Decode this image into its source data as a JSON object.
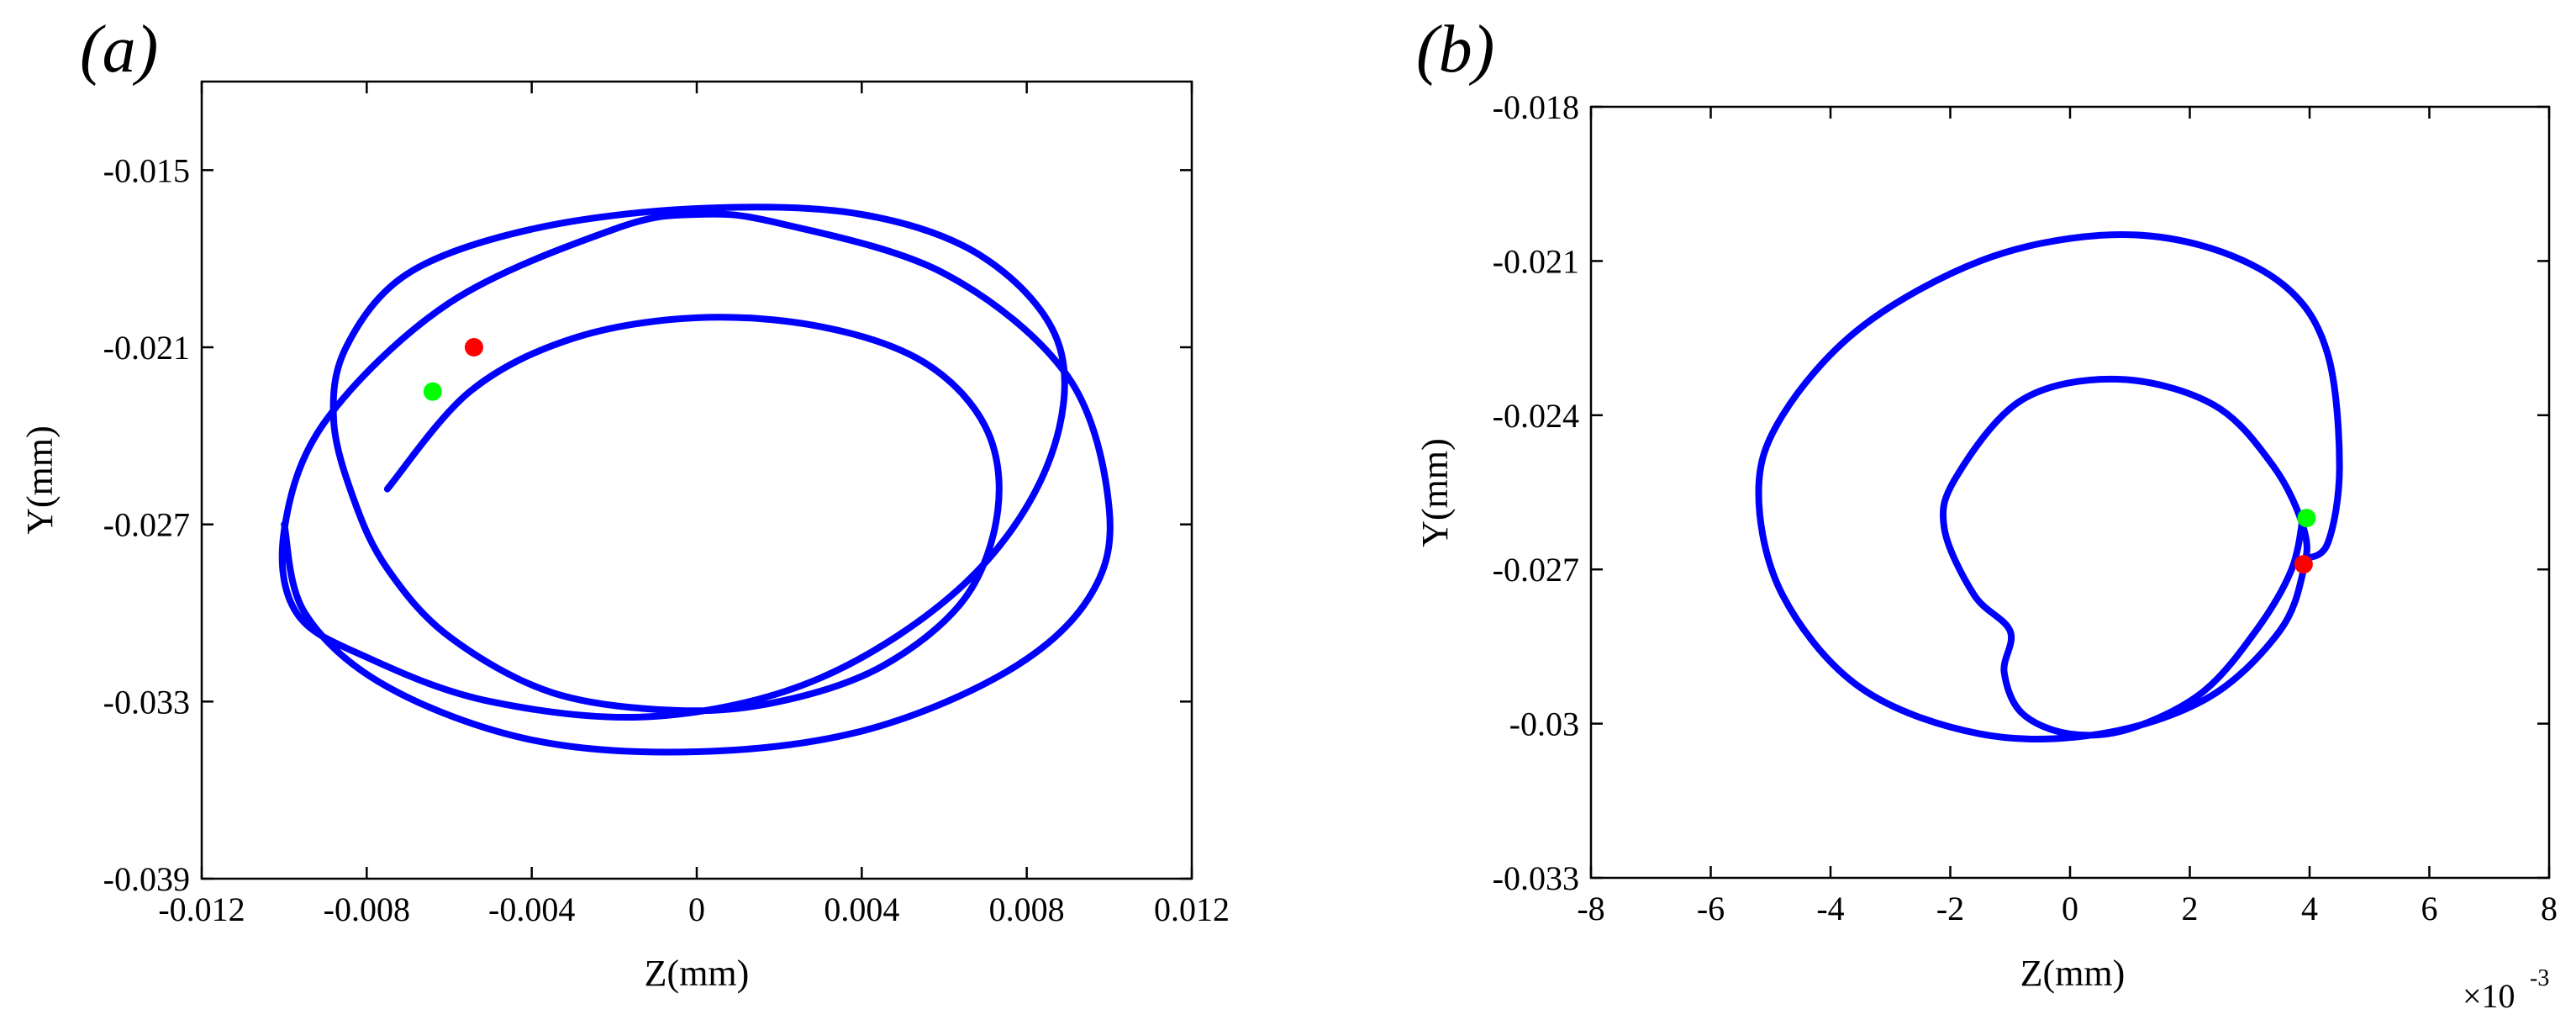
{
  "chart_data": [
    {
      "type": "line",
      "panel_label": "(a)",
      "xlabel": "Z(mm)",
      "ylabel": "Y(mm)",
      "xlim": [
        -0.012,
        0.012
      ],
      "ylim": [
        -0.039,
        -0.012
      ],
      "xticks": [
        -0.012,
        -0.008,
        -0.004,
        0,
        0.004,
        0.008,
        0.012
      ],
      "xtick_labels": [
        "-0.012",
        "-0.008",
        "-0.004",
        "0",
        "0.004",
        "0.008",
        "0.012"
      ],
      "yticks": [
        -0.039,
        -0.033,
        -0.027,
        -0.021,
        -0.015
      ],
      "ytick_labels": [
        "-0.039",
        "-0.033",
        "-0.027",
        "-0.021",
        "-0.015"
      ],
      "series": [
        {
          "name": "trajectory",
          "color": "#0000ff",
          "z": [
            -0.0075,
            -0.0055,
            -0.003,
            0.0,
            0.003,
            0.0055,
            0.007,
            0.0073,
            0.0065,
            0.0045,
            0.002,
            -0.0005,
            -0.0035,
            -0.006,
            -0.0075,
            -0.0083,
            -0.0088,
            -0.0085,
            -0.007,
            -0.004,
            0.0,
            0.004,
            0.007,
            0.0088,
            0.0085,
            0.0065,
            0.003,
            -0.001,
            -0.005,
            -0.008,
            -0.0097,
            -0.01,
            -0.009,
            -0.006,
            -0.002,
            0.0,
            0.002,
            0.006,
            0.009,
            0.01,
            0.0095,
            0.0075,
            0.004,
            0.0,
            -0.004,
            -0.0075,
            -0.0095,
            -0.01
          ],
          "y": [
            -0.0258,
            -0.0225,
            -0.0207,
            -0.02,
            -0.0203,
            -0.0215,
            -0.0237,
            -0.0265,
            -0.0295,
            -0.0318,
            -0.033,
            -0.0333,
            -0.0327,
            -0.0308,
            -0.0285,
            -0.0262,
            -0.0235,
            -0.021,
            -0.0185,
            -0.017,
            -0.0163,
            -0.0165,
            -0.018,
            -0.021,
            -0.025,
            -0.029,
            -0.0322,
            -0.0335,
            -0.033,
            -0.0315,
            -0.03,
            -0.0272,
            -0.0235,
            -0.0195,
            -0.017,
            -0.0165,
            -0.0168,
            -0.0185,
            -0.022,
            -0.0265,
            -0.0295,
            -0.032,
            -0.034,
            -0.0347,
            -0.0343,
            -0.0325,
            -0.03,
            -0.027
          ]
        }
      ],
      "markers": [
        {
          "name": "start-marker",
          "color": "#ff0000",
          "z": -0.0054,
          "y": -0.021
        },
        {
          "name": "end-marker",
          "color": "#00ff00",
          "z": -0.0064,
          "y": -0.0225
        }
      ]
    },
    {
      "type": "line",
      "panel_label": "(b)",
      "xlabel": "Z(mm)",
      "ylabel": "Y(mm)",
      "x_scale_label": "×10",
      "x_scale_exponent": "-3",
      "xlim": [
        -8,
        8
      ],
      "ylim": [
        -0.033,
        -0.018
      ],
      "xticks": [
        -8,
        -6,
        -4,
        -2,
        0,
        2,
        4,
        6,
        8
      ],
      "xtick_labels": [
        "-8",
        "-6",
        "-4",
        "-2",
        "0",
        "2",
        "4",
        "6",
        "8"
      ],
      "yticks": [
        -0.033,
        -0.03,
        -0.027,
        -0.024,
        -0.021,
        -0.018
      ],
      "ytick_labels": [
        "-0.033",
        "-0.03",
        "-0.027",
        "-0.024",
        "-0.021",
        "-0.018"
      ],
      "series": [
        {
          "name": "trajectory",
          "color": "#0000ff",
          "z": [
            3.9,
            4.3,
            4.5,
            4.3,
            3.6,
            2.2,
            0.5,
            -1.5,
            -3.5,
            -4.8,
            -5.2,
            -4.8,
            -3.5,
            -1.5,
            0.5,
            2.3,
            3.5,
            3.9,
            3.9,
            3.4,
            2.4,
            0.8,
            -0.8,
            -1.9,
            -2.1,
            -1.6,
            -1.0,
            -1.1,
            -0.8,
            0.0,
            1.0,
            2.2,
            3.1,
            3.7,
            3.9
          ],
          "y": [
            -0.0268,
            -0.0265,
            -0.025,
            -0.0228,
            -0.0215,
            -0.0207,
            -0.0205,
            -0.021,
            -0.0223,
            -0.024,
            -0.0255,
            -0.0275,
            -0.0293,
            -0.0302,
            -0.0302,
            -0.0295,
            -0.0282,
            -0.027,
            -0.0262,
            -0.025,
            -0.0238,
            -0.0233,
            -0.0237,
            -0.0252,
            -0.0262,
            -0.0275,
            -0.0282,
            -0.029,
            -0.0298,
            -0.0302,
            -0.0301,
            -0.0294,
            -0.0282,
            -0.027,
            -0.0259
          ]
        }
      ],
      "markers": [
        {
          "name": "start-marker",
          "color": "#ff0000",
          "z": 3.9,
          "y": -0.0269
        },
        {
          "name": "end-marker",
          "color": "#00ff00",
          "z": 3.95,
          "y": -0.026
        }
      ]
    }
  ]
}
